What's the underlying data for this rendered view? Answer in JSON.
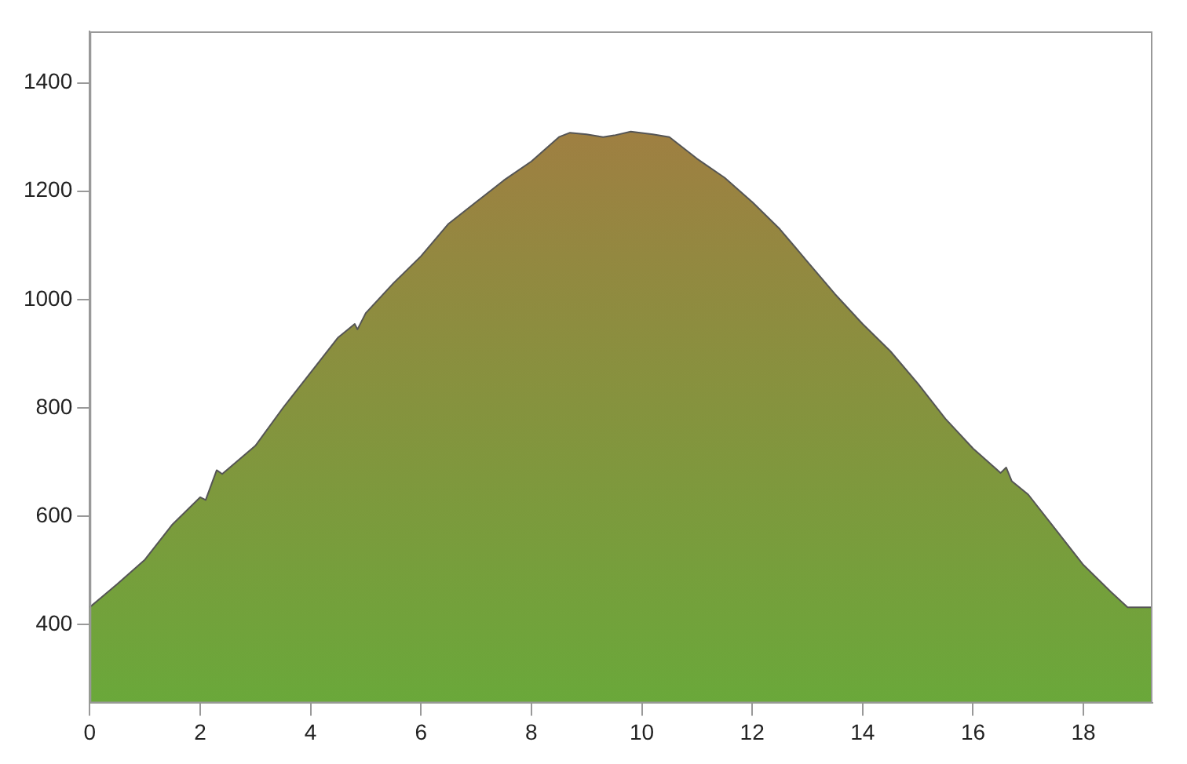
{
  "chart_data": {
    "type": "area",
    "x": [
      0,
      0.5,
      1,
      1.5,
      2,
      2.1,
      2.3,
      2.4,
      3,
      3.5,
      4,
      4.5,
      4.8,
      4.85,
      5,
      5.5,
      6,
      6.5,
      7,
      7.5,
      8,
      8.5,
      8.7,
      9,
      9.3,
      9.5,
      9.8,
      10.2,
      10.5,
      11,
      11.5,
      12,
      12.5,
      13,
      13.5,
      14,
      14.5,
      15,
      15.5,
      16,
      16.5,
      16.6,
      16.7,
      17,
      17.5,
      18,
      18.5,
      18.8,
      19.25
    ],
    "series": [
      {
        "color": "#6aa83a",
        "values": [
          432,
          475,
          520,
          585,
          635,
          630,
          685,
          678,
          730,
          800,
          865,
          930,
          955,
          945,
          975,
          1030,
          1080,
          1140,
          1180,
          1220,
          1255,
          1300,
          1308,
          1305,
          1300,
          1303,
          1310,
          1305,
          1300,
          1260,
          1225,
          1180,
          1130,
          1070,
          1010,
          955,
          905,
          845,
          780,
          725,
          680,
          690,
          665,
          640,
          575,
          510,
          460,
          432,
          432
        ]
      }
    ],
    "xlim": [
      0,
      19.25
    ],
    "ylim": [
      255,
      1495
    ],
    "xticks": [
      0,
      2,
      4,
      6,
      8,
      10,
      12,
      14,
      16,
      18
    ],
    "yticks": [
      400,
      600,
      800,
      1000,
      1200,
      1400
    ],
    "grid": false,
    "legend": false
  }
}
